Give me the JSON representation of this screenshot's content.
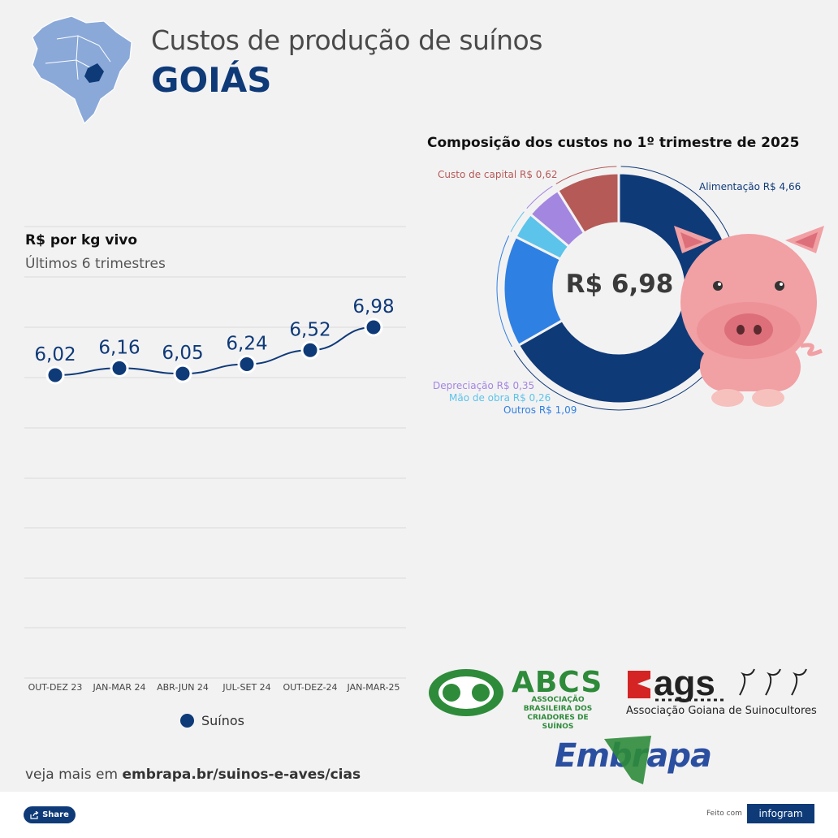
{
  "header": {
    "title": "Custos de produção de suínos",
    "state": "GOIÁS"
  },
  "line_chart": {
    "title": "R$ por kg vivo",
    "subtitle": "Últimos 6 trimestres",
    "legend_label": "Suínos"
  },
  "donut_chart": {
    "title": "Composição dos custos no 1º trimestre de 2025",
    "center_label": "R$ 6,98",
    "slice_labels": [
      "Alimentação R$ 4,66",
      "Outros R$ 1,09",
      "Mão de obra R$ 0,26",
      "Depreciação R$ 0,35",
      "Custo de capital R$ 0,62"
    ]
  },
  "chart_data": [
    {
      "type": "line",
      "title": "R$ por kg vivo",
      "subtitle": "Últimos 6 trimestres",
      "x": [
        "OUT-DEZ 23",
        "JAN-MAR 24",
        "ABR-JUN 24",
        "JUL-SET 24",
        "OUT-DEZ-24",
        "JAN-MAR-25"
      ],
      "series": [
        {
          "name": "Suínos",
          "values": [
            6.02,
            6.16,
            6.05,
            6.24,
            6.52,
            6.98
          ],
          "labels": [
            "6,02",
            "6,16",
            "6,05",
            "6,24",
            "6,52",
            "6,98"
          ],
          "color": "#0e3a78"
        }
      ],
      "grid": true,
      "legend": "bottom"
    },
    {
      "type": "pie",
      "title": "Composição dos custos no 1º trimestre de 2025",
      "center_label": "R$ 6,98",
      "slices": [
        {
          "label": "Alimentação",
          "value": 4.66,
          "color": "#0e3a78"
        },
        {
          "label": "Outros",
          "value": 1.09,
          "color": "#2f80e3"
        },
        {
          "label": "Mão de obra",
          "value": 0.26,
          "color": "#5cc3ea"
        },
        {
          "label": "Depreciação",
          "value": 0.35,
          "color": "#a386e0"
        },
        {
          "label": "Custo de capital",
          "value": 0.62,
          "color": "#b55a57"
        }
      ]
    }
  ],
  "logos": {
    "abcs": "ABCS",
    "abcs_subtitle": "ASSOCIAÇÃO BRASILEIRA DOS CRIADORES DE SUÍNOS",
    "ags": "ags",
    "ags_subtitle": "Associação Goiana de Suinocultores",
    "embrapa": "Embrapa"
  },
  "more_info": {
    "prefix": "veja mais em ",
    "link": "embrapa.br/suinos-e-aves/cias"
  },
  "footer": {
    "share_label": "Share",
    "made_with": "Feito com",
    "infogram": "infogram"
  }
}
